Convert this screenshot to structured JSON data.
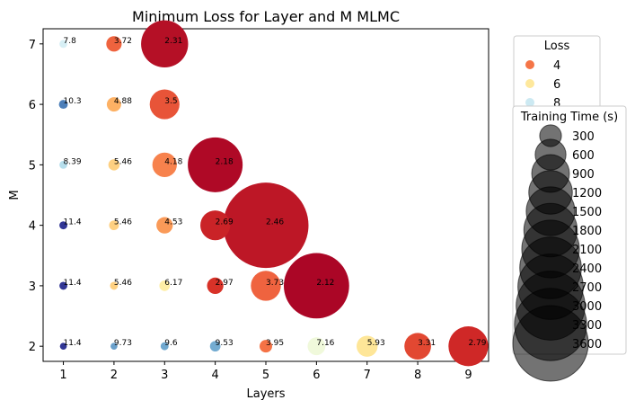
{
  "chart_data": {
    "type": "scatter",
    "title": "Minimum Loss for Layer and M MLMC",
    "xlabel": "Layers",
    "ylabel": "M",
    "xlim": [
      0.6,
      9.4
    ],
    "ylim": [
      1.75,
      7.25
    ],
    "xticks": [
      1,
      2,
      3,
      4,
      5,
      6,
      7,
      8,
      9
    ],
    "yticks": [
      2,
      3,
      4,
      5,
      6,
      7
    ],
    "color_scale": {
      "min_loss": 2.0,
      "max_loss": 11.4,
      "colormap": "RdYlBu"
    },
    "points": [
      {
        "x": 1,
        "y": 7,
        "loss": 7.8,
        "time": 40,
        "label": "7.8"
      },
      {
        "x": 2,
        "y": 7,
        "loss": 3.72,
        "time": 150,
        "label": "3.72"
      },
      {
        "x": 3,
        "y": 7,
        "loss": 2.31,
        "time": 1400,
        "label": "2.31"
      },
      {
        "x": 1,
        "y": 6,
        "loss": 10.3,
        "time": 50,
        "label": "10.3"
      },
      {
        "x": 2,
        "y": 6,
        "loss": 4.88,
        "time": 130,
        "label": "4.88"
      },
      {
        "x": 3,
        "y": 6,
        "loss": 3.5,
        "time": 560,
        "label": "3.5"
      },
      {
        "x": 1,
        "y": 5,
        "loss": 8.39,
        "time": 40,
        "label": "8.39"
      },
      {
        "x": 2,
        "y": 5,
        "loss": 5.46,
        "time": 80,
        "label": "5.46"
      },
      {
        "x": 3,
        "y": 5,
        "loss": 4.18,
        "time": 380,
        "label": "4.18"
      },
      {
        "x": 4,
        "y": 5,
        "loss": 2.18,
        "time": 1900,
        "label": "2.18"
      },
      {
        "x": 1,
        "y": 4,
        "loss": 11.4,
        "time": 40,
        "label": "11.4"
      },
      {
        "x": 2,
        "y": 4,
        "loss": 5.46,
        "time": 60,
        "label": "5.46"
      },
      {
        "x": 3,
        "y": 4,
        "loss": 4.53,
        "time": 170,
        "label": "4.53"
      },
      {
        "x": 4,
        "y": 4,
        "loss": 2.69,
        "time": 560,
        "label": "2.69"
      },
      {
        "x": 5,
        "y": 4,
        "loss": 2.46,
        "time": 4600,
        "label": "2.46"
      },
      {
        "x": 1,
        "y": 3,
        "loss": 11.4,
        "time": 40,
        "label": "11.4"
      },
      {
        "x": 2,
        "y": 3,
        "loss": 5.46,
        "time": 40,
        "label": "5.46"
      },
      {
        "x": 3,
        "y": 3,
        "loss": 6.17,
        "time": 70,
        "label": "6.17"
      },
      {
        "x": 4,
        "y": 3,
        "loss": 2.97,
        "time": 170,
        "label": "2.97"
      },
      {
        "x": 5,
        "y": 3,
        "loss": 3.73,
        "time": 570,
        "label": "3.73"
      },
      {
        "x": 6,
        "y": 3,
        "loss": 2.12,
        "time": 2700,
        "label": "2.12"
      },
      {
        "x": 1,
        "y": 2,
        "loss": 11.4,
        "time": 30,
        "label": "11.4"
      },
      {
        "x": 2,
        "y": 2,
        "loss": 9.73,
        "time": 30,
        "label": "9.73"
      },
      {
        "x": 3,
        "y": 2,
        "loss": 9.6,
        "time": 40,
        "label": "9.6"
      },
      {
        "x": 4,
        "y": 2,
        "loss": 9.53,
        "time": 70,
        "label": "9.53"
      },
      {
        "x": 5,
        "y": 2,
        "loss": 3.95,
        "time": 100,
        "label": "3.95"
      },
      {
        "x": 6,
        "y": 2,
        "loss": 7.16,
        "time": 200,
        "label": "7.16"
      },
      {
        "x": 7,
        "y": 2,
        "loss": 5.93,
        "time": 280,
        "label": "5.93"
      },
      {
        "x": 8,
        "y": 2,
        "loss": 3.31,
        "time": 450,
        "label": "3.31"
      },
      {
        "x": 9,
        "y": 2,
        "loss": 2.79,
        "time": 1000,
        "label": "2.79"
      }
    ],
    "color_legend": {
      "title": "Loss",
      "entries": [
        {
          "label": "4",
          "loss": 4
        },
        {
          "label": "6",
          "loss": 6
        },
        {
          "label": "8",
          "loss": 8
        }
      ],
      "placement": "upper-right-outside"
    },
    "size_legend": {
      "title": "Training Time (s)",
      "entries": [
        {
          "label": "300",
          "time": 300
        },
        {
          "label": "600",
          "time": 600
        },
        {
          "label": "900",
          "time": 900
        },
        {
          "label": "1200",
          "time": 1200
        },
        {
          "label": "1500",
          "time": 1500
        },
        {
          "label": "1800",
          "time": 1800
        },
        {
          "label": "2100",
          "time": 2100
        },
        {
          "label": "2400",
          "time": 2400
        },
        {
          "label": "2700",
          "time": 2700
        },
        {
          "label": "3000",
          "time": 3000
        },
        {
          "label": "3300",
          "time": 3300
        },
        {
          "label": "3600",
          "time": 3600
        }
      ],
      "placement": "right-outside"
    }
  }
}
